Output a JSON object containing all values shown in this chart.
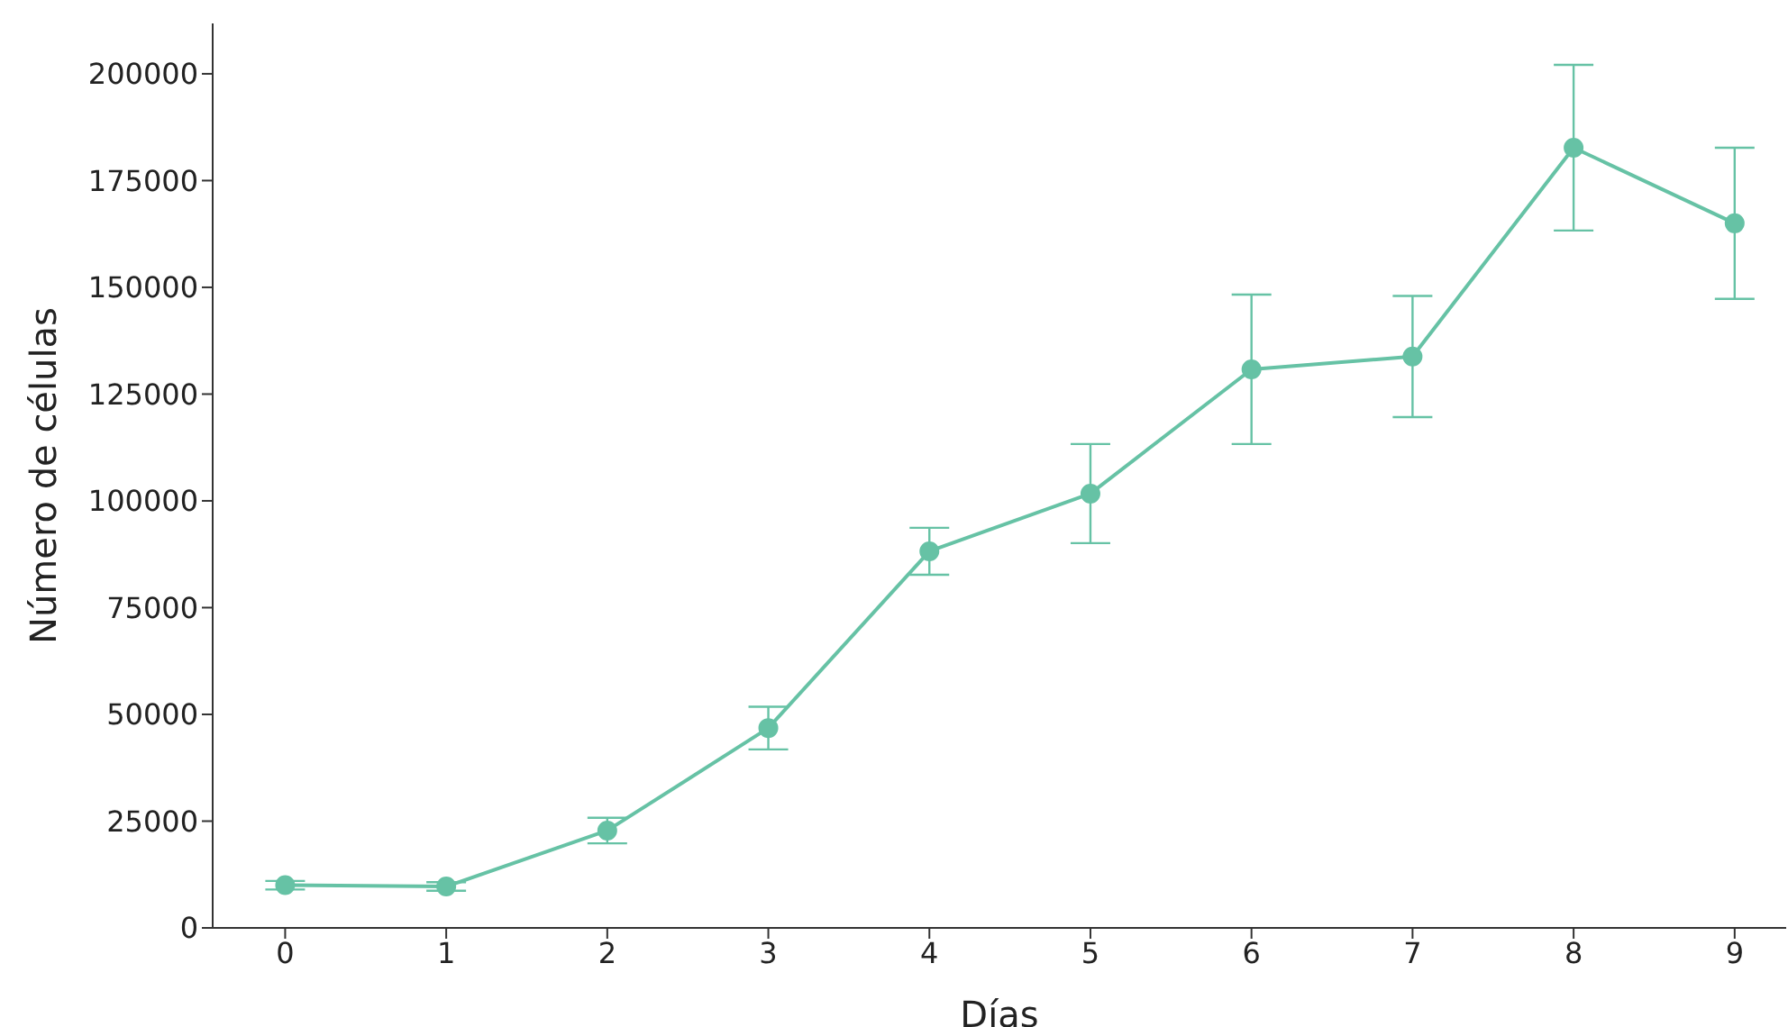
{
  "chart_data": {
    "type": "line",
    "xlabel": "Días",
    "ylabel": "Número de células",
    "x": [
      0,
      1,
      2,
      3,
      4,
      5,
      6,
      7,
      8,
      9
    ],
    "series": [
      {
        "color": "#66c2a5",
        "values": [
          10000,
          9700,
          22800,
          46800,
          88200,
          101700,
          130800,
          133800,
          182700,
          165000
        ],
        "errors": [
          1000,
          1000,
          3000,
          5000,
          5500,
          11600,
          17500,
          14200,
          19400,
          17700
        ]
      }
    ],
    "xlim": [
      -0.45,
      9.32
    ],
    "xticks": [
      0,
      1,
      2,
      3,
      4,
      5,
      6,
      7,
      8,
      9
    ],
    "ylim": [
      0,
      211800
    ],
    "yticks": [
      0,
      25000,
      50000,
      75000,
      100000,
      125000,
      150000,
      175000,
      200000
    ],
    "grid": false,
    "legend": false,
    "marker": "circle",
    "line_style": "solid"
  }
}
